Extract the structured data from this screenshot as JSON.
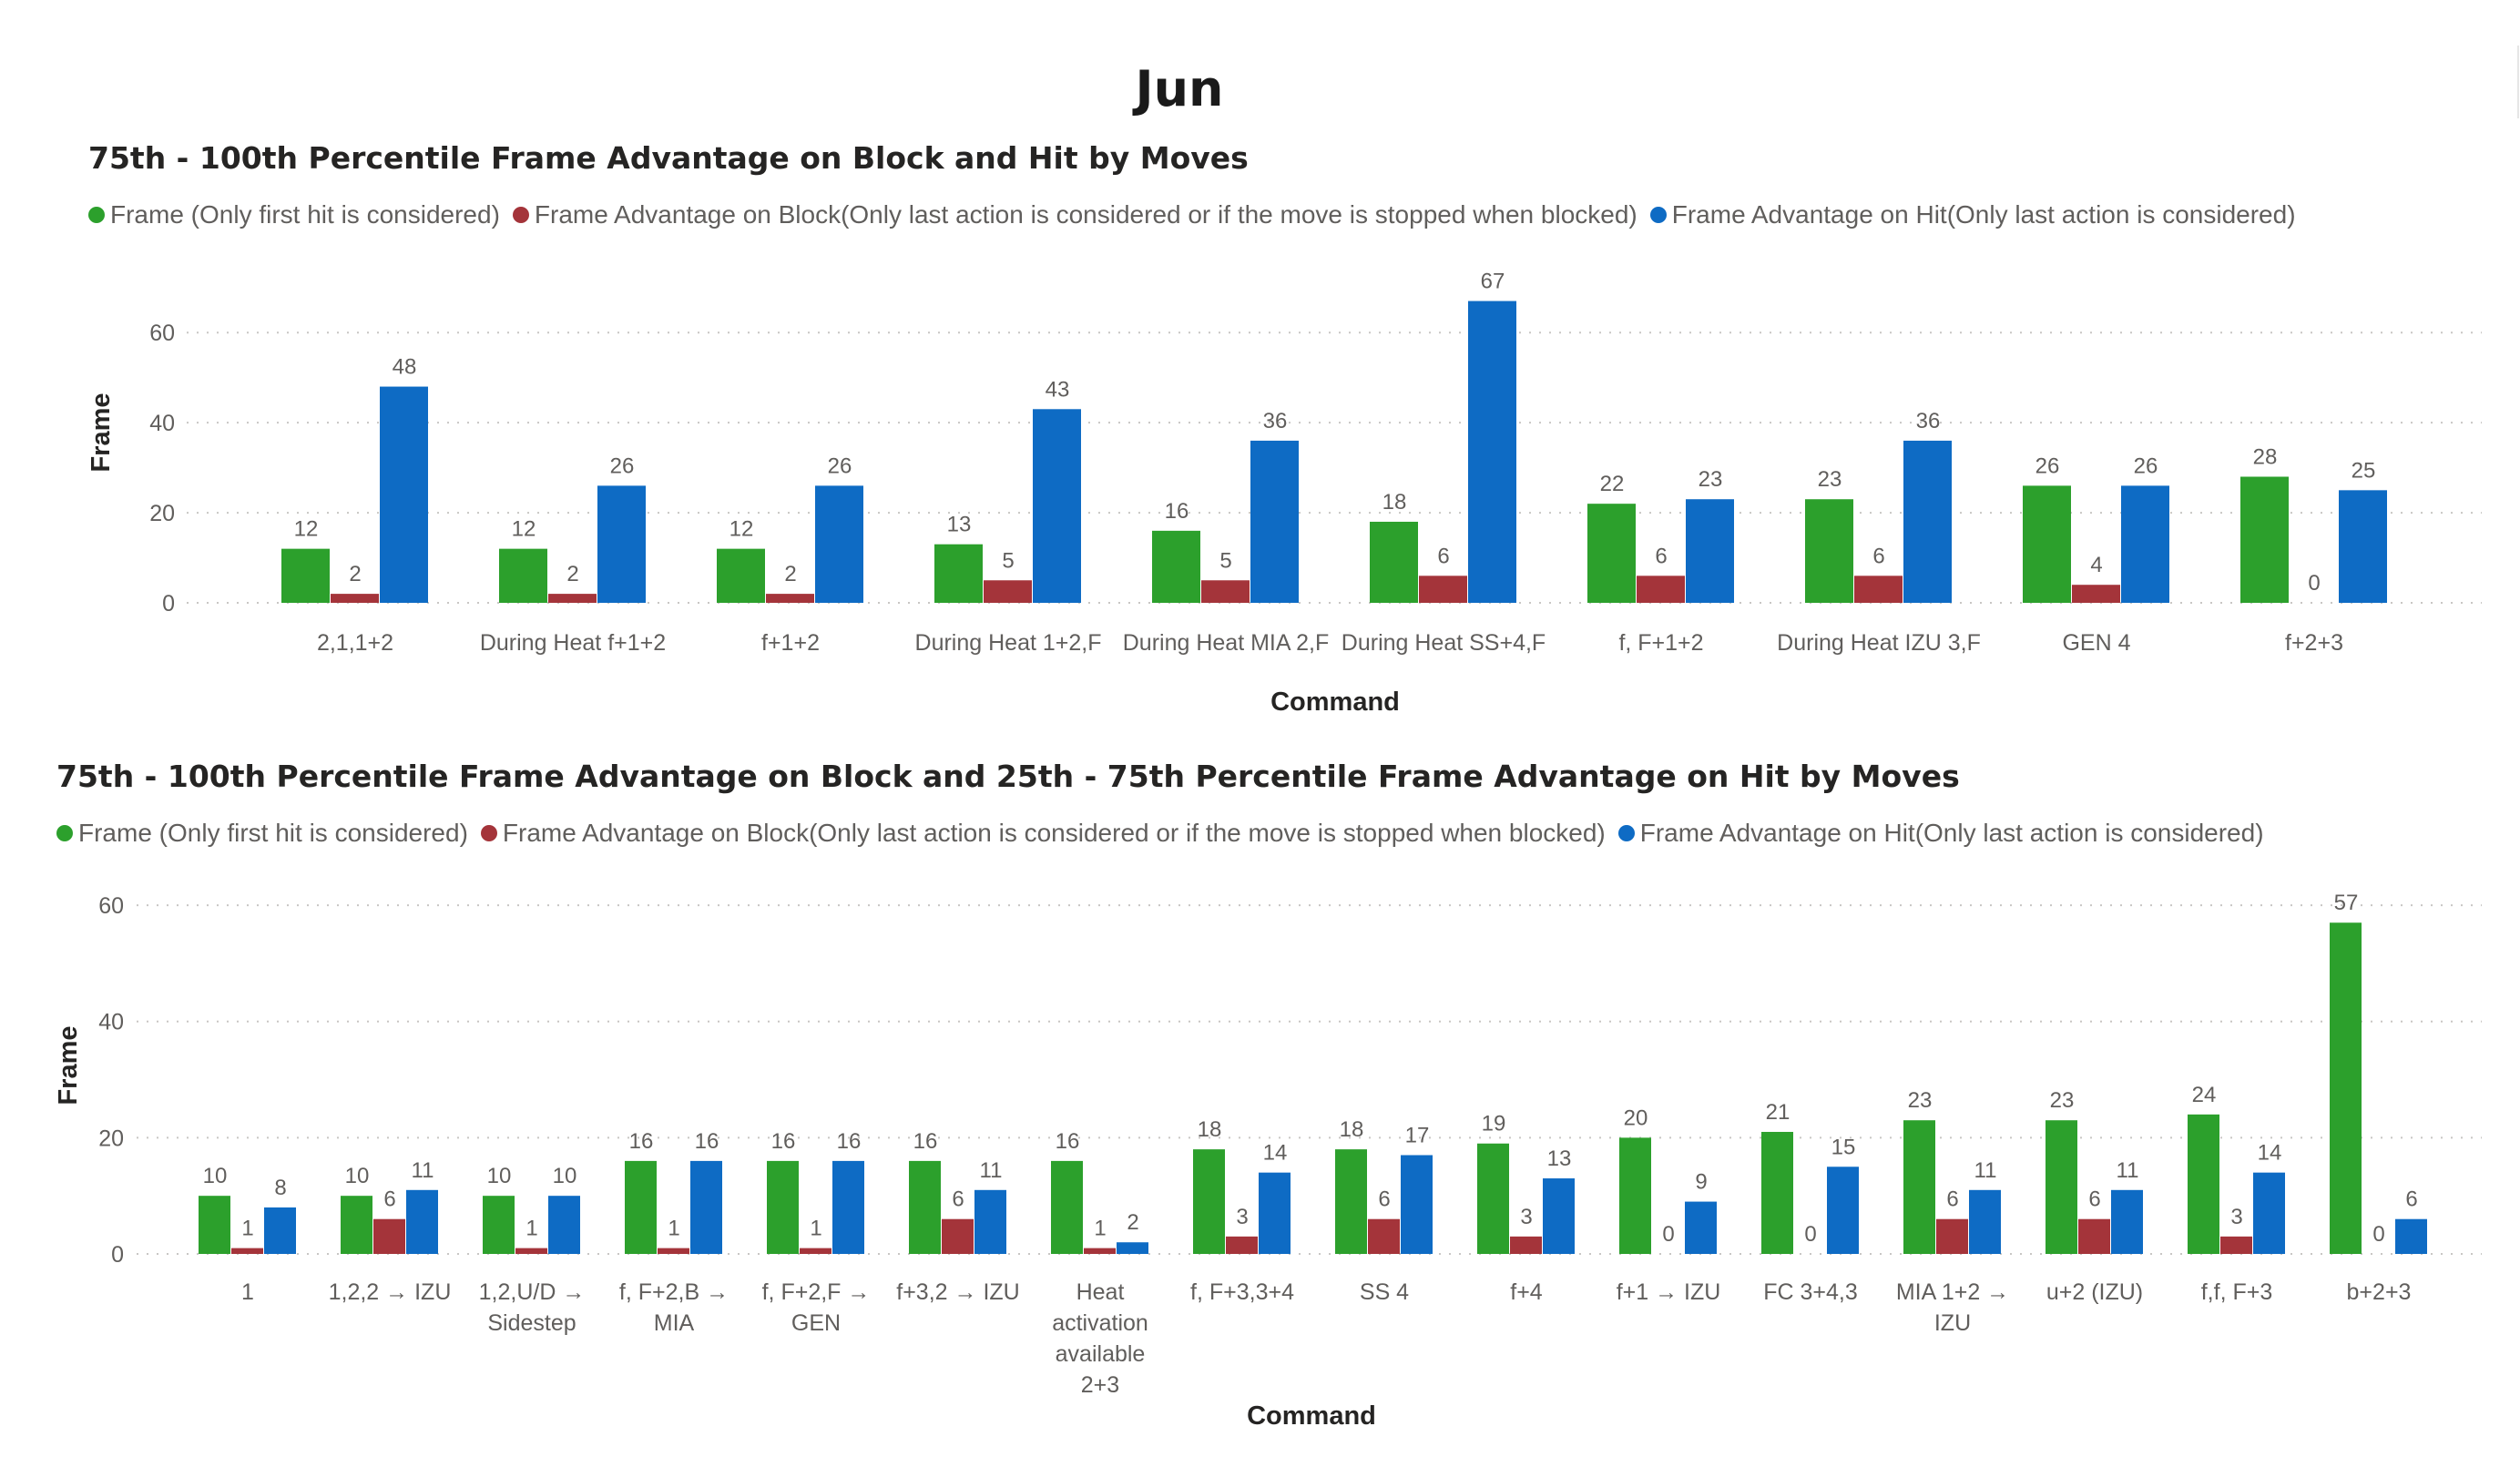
{
  "page": {
    "title": "Jun"
  },
  "chart_data": [
    {
      "type": "bar",
      "title": "75th - 100th Percentile Frame Advantage on Block and Hit by Moves",
      "xlabel": "Command",
      "ylabel": "Frame",
      "ylim": [
        0,
        75
      ],
      "yticks": [
        0,
        20,
        40,
        60
      ],
      "grid": true,
      "legend_position": "top-left",
      "categories": [
        "2,1,1+2",
        "During Heat f+1+2",
        "f+1+2",
        "During Heat 1+2,F",
        "During Heat MIA 2,F",
        "During Heat SS+4,F",
        "f, F+1+2",
        "During Heat IZU 3,F",
        "GEN 4",
        "f+2+3"
      ],
      "series": [
        {
          "name": "Frame (Only first hit is considered)",
          "color": "#2ca02c",
          "values": [
            12,
            12,
            12,
            13,
            16,
            18,
            22,
            23,
            26,
            28
          ]
        },
        {
          "name": "Frame Advantage on Block(Only last action is considered or if the move is stopped when blocked)",
          "color": "#a4343a",
          "values": [
            2,
            2,
            2,
            5,
            5,
            6,
            6,
            6,
            4,
            0
          ]
        },
        {
          "name": "Frame Advantage on Hit(Only last action is considered)",
          "color": "#0e6bc4",
          "values": [
            48,
            26,
            26,
            43,
            36,
            67,
            23,
            36,
            26,
            25
          ]
        }
      ]
    },
    {
      "type": "bar",
      "title": "75th - 100th Percentile Frame Advantage on Block and 25th - 75th Percentile Frame Advantage on Hit by Moves",
      "xlabel": "Command",
      "ylabel": "Frame",
      "ylim": [
        0,
        62
      ],
      "yticks": [
        0,
        20,
        40,
        60
      ],
      "grid": true,
      "legend_position": "top-left",
      "categories": [
        "1",
        "1,2,2 → IZU",
        "1,2,U/D → Sidestep",
        "f, F+2,B → MIA",
        "f, F+2,F → GEN",
        "f+3,2 → IZU",
        "Heat activation available 2+3",
        "f, F+3,3+4",
        "SS 4",
        "f+4",
        "f+1 → IZU",
        "FC 3+4,3",
        "MIA 1+2 → IZU",
        "u+2 (IZU)",
        "f,f, F+3",
        "b+2+3"
      ],
      "series": [
        {
          "name": "Frame (Only first hit is considered)",
          "color": "#2ca02c",
          "values": [
            10,
            10,
            10,
            16,
            16,
            16,
            16,
            18,
            18,
            19,
            20,
            21,
            23,
            23,
            24,
            57
          ]
        },
        {
          "name": "Frame Advantage on Block(Only last action is considered or if the move is stopped when blocked)",
          "color": "#a4343a",
          "values": [
            1,
            6,
            1,
            1,
            1,
            6,
            1,
            3,
            6,
            3,
            0,
            0,
            6,
            6,
            3,
            0
          ]
        },
        {
          "name": "Frame Advantage on Hit(Only last action is considered)",
          "color": "#0e6bc4",
          "values": [
            8,
            11,
            10,
            16,
            16,
            11,
            2,
            14,
            17,
            13,
            9,
            15,
            11,
            11,
            14,
            6
          ]
        }
      ]
    }
  ]
}
